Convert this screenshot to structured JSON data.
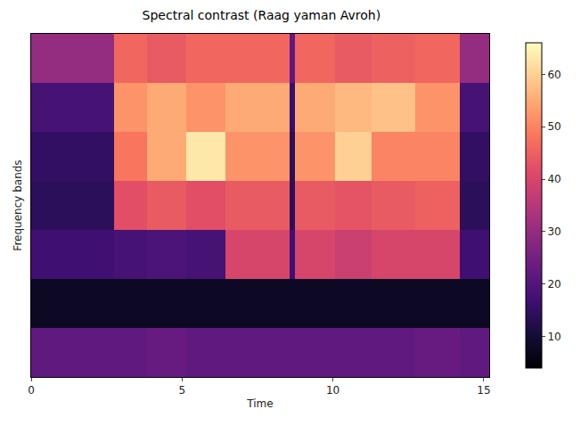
{
  "chart_data": {
    "type": "heatmap",
    "title": "Spectral contrast (Raag yaman Avroh)",
    "x_label": "Time",
    "y_label": "Frequency bands",
    "x_edges": [
      0,
      2.76,
      3.83,
      5.15,
      6.45,
      8.56,
      8.73,
      10.08,
      11.27,
      12.73,
      14.2,
      15.18
    ],
    "cells": [
      [
        22,
        22,
        23,
        22,
        22,
        22,
        22,
        22,
        22,
        23,
        22
      ],
      [
        8,
        8,
        8,
        8,
        8,
        8,
        8,
        8,
        8,
        8,
        8
      ],
      [
        17,
        18,
        19,
        18,
        40,
        17,
        40,
        38,
        40,
        40,
        17
      ],
      [
        14,
        42,
        44,
        42,
        44,
        14,
        44,
        43,
        44,
        45,
        14
      ],
      [
        15,
        48,
        55,
        63,
        52,
        14,
        52,
        60,
        50,
        50,
        15
      ],
      [
        18,
        52,
        55,
        52,
        55,
        16,
        55,
        57,
        58,
        52,
        18
      ],
      [
        30,
        46,
        44,
        46,
        46,
        22,
        46,
        44,
        45,
        46,
        30
      ]
    ],
    "xlim": [
      0,
      15.18
    ],
    "xticks": [
      0,
      5,
      10,
      15
    ],
    "ylim": [
      0,
      7
    ],
    "tick_labels": "x",
    "color": "magma",
    "colorbar": {
      "range": [
        4,
        66
      ],
      "ticks": [
        10,
        20,
        30,
        40,
        50,
        60
      ]
    }
  }
}
